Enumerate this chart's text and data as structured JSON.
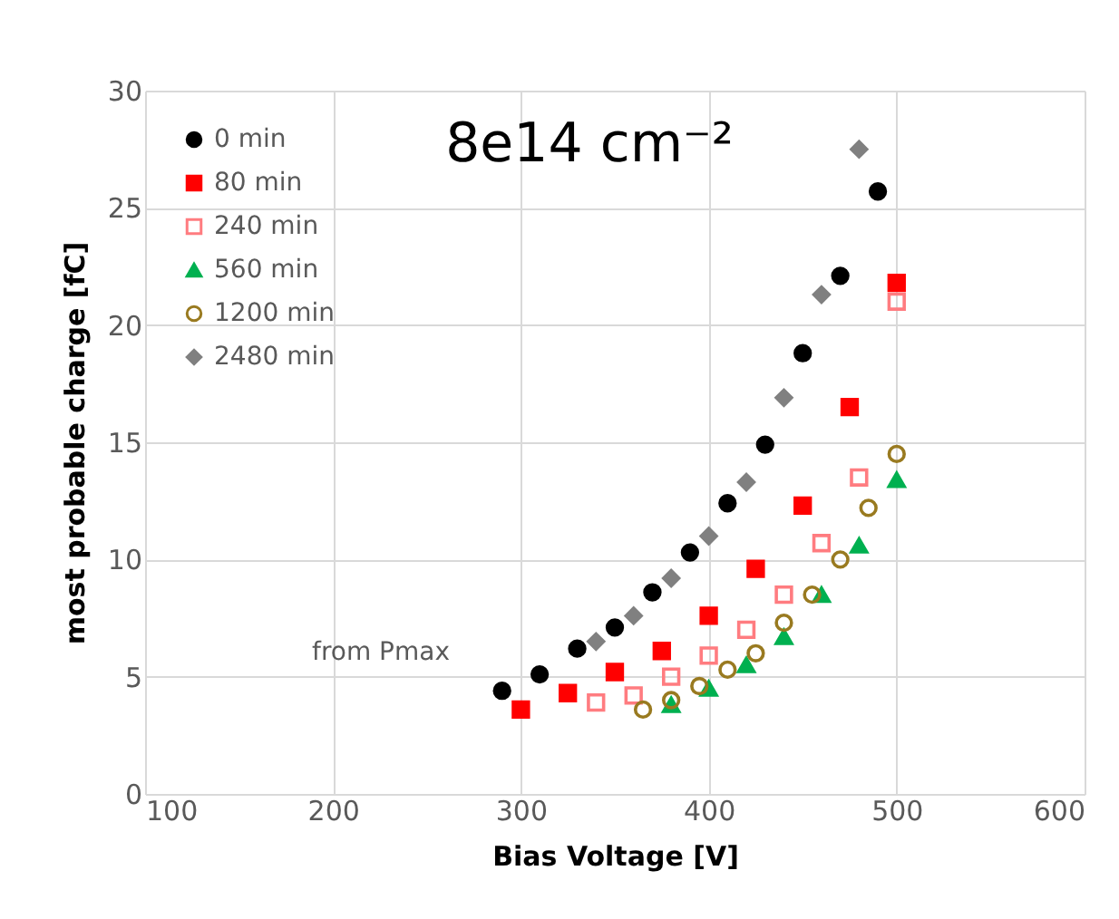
{
  "chart_data": {
    "type": "scatter",
    "title": "8e14 cm⁻²",
    "xlabel": "Bias Voltage [V]",
    "ylabel": "most probable charge [fC]",
    "annotations": [
      "from Pmax"
    ],
    "xlim": [
      100,
      600
    ],
    "xticks": [
      100,
      200,
      300,
      400,
      500,
      600
    ],
    "ylim": [
      0,
      30
    ],
    "yticks": [
      0,
      5,
      10,
      15,
      20,
      25,
      30
    ],
    "grid": true,
    "legend": "top left",
    "series": [
      {
        "name": "0 min",
        "color": "#000000",
        "marker": "circle",
        "x": [
          290,
          310,
          330,
          350,
          370,
          390,
          410,
          430,
          450,
          470,
          490
        ],
        "values": [
          4.4,
          5.1,
          6.2,
          7.1,
          8.6,
          10.3,
          12.4,
          14.9,
          18.8,
          22.1,
          25.7
        ]
      },
      {
        "name": "80 min",
        "color": "#ff0000",
        "marker": "square",
        "x": [
          300,
          325,
          350,
          375,
          400,
          425,
          450,
          475,
          500
        ],
        "values": [
          3.6,
          4.3,
          5.2,
          6.1,
          7.6,
          9.6,
          12.3,
          16.5,
          21.8
        ]
      },
      {
        "name": "240 min",
        "color": "#ff7c80",
        "marker": "square-open",
        "x": [
          340,
          360,
          380,
          400,
          420,
          440,
          460,
          480,
          500
        ],
        "values": [
          3.9,
          4.2,
          5.0,
          5.9,
          7.0,
          8.5,
          10.7,
          13.5,
          21.0
        ]
      },
      {
        "name": "560 min",
        "color": "#00b050",
        "marker": "triangle",
        "x": [
          380,
          400,
          420,
          440,
          460,
          480,
          500
        ],
        "values": [
          3.8,
          4.5,
          5.5,
          6.7,
          8.5,
          10.6,
          13.4
        ]
      },
      {
        "name": "1200 min",
        "color": "#997a20",
        "marker": "circle-open",
        "x": [
          365,
          380,
          395,
          410,
          425,
          440,
          455,
          470,
          485,
          500
        ],
        "values": [
          3.6,
          4.0,
          4.6,
          5.3,
          6.0,
          7.3,
          8.5,
          10.0,
          12.2,
          14.5
        ]
      },
      {
        "name": "2480 min",
        "color": "#808080",
        "marker": "diamond",
        "x": [
          340,
          360,
          380,
          400,
          420,
          440,
          460,
          480
        ],
        "values": [
          6.5,
          7.6,
          9.2,
          11.0,
          13.3,
          16.9,
          21.3,
          27.5
        ]
      }
    ]
  }
}
